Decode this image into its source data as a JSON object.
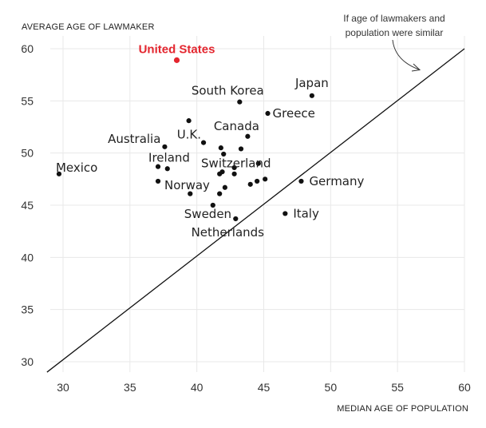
{
  "chart_data": {
    "type": "scatter",
    "title": "",
    "xlabel": "MEDIAN AGE OF POPULATION",
    "ylabel": "AVERAGE AGE OF LAWMAKER",
    "xlim": [
      28.5,
      60
    ],
    "ylim": [
      29,
      60.5
    ],
    "x_ticks": [
      30,
      35,
      40,
      45,
      50,
      55,
      60
    ],
    "y_ticks": [
      30,
      35,
      40,
      45,
      50,
      55,
      60
    ],
    "grid": true,
    "reference_line": {
      "points": [
        [
          28.8,
          29
        ],
        [
          60,
          60
        ]
      ],
      "annotation": "If age of lawmakers and population were similar",
      "annotation_lines": [
        "If age of lawmakers and",
        "population were similar"
      ]
    },
    "highlight_color": "#e4262f",
    "points": [
      {
        "x": 38.5,
        "y": 58.9,
        "label": "United States",
        "highlight": true
      },
      {
        "x": 48.6,
        "y": 55.5,
        "label": "Japan"
      },
      {
        "x": 43.2,
        "y": 54.9,
        "label": "South Korea"
      },
      {
        "x": 45.3,
        "y": 53.8,
        "label": "Greece"
      },
      {
        "x": 39.4,
        "y": 53.1,
        "label": ""
      },
      {
        "x": 43.8,
        "y": 51.6,
        "label": "Canada"
      },
      {
        "x": 40.5,
        "y": 51.0,
        "label": "U.K."
      },
      {
        "x": 37.6,
        "y": 50.6,
        "label": "Australia"
      },
      {
        "x": 41.8,
        "y": 50.5,
        "label": ""
      },
      {
        "x": 43.3,
        "y": 50.4,
        "label": ""
      },
      {
        "x": 42.0,
        "y": 49.9,
        "label": ""
      },
      {
        "x": 44.6,
        "y": 49.0,
        "label": "Switzerland"
      },
      {
        "x": 37.1,
        "y": 48.7,
        "label": "Ireland"
      },
      {
        "x": 37.8,
        "y": 48.5,
        "label": ""
      },
      {
        "x": 42.8,
        "y": 48.6,
        "label": ""
      },
      {
        "x": 41.9,
        "y": 48.2,
        "label": ""
      },
      {
        "x": 41.7,
        "y": 48.0,
        "label": ""
      },
      {
        "x": 42.8,
        "y": 48.0,
        "label": ""
      },
      {
        "x": 29.7,
        "y": 48.0,
        "label": "Mexico"
      },
      {
        "x": 45.1,
        "y": 47.5,
        "label": ""
      },
      {
        "x": 44.5,
        "y": 47.3,
        "label": ""
      },
      {
        "x": 37.1,
        "y": 47.3,
        "label": "Norway"
      },
      {
        "x": 47.8,
        "y": 47.3,
        "label": "Germany"
      },
      {
        "x": 44.0,
        "y": 47.0,
        "label": ""
      },
      {
        "x": 42.1,
        "y": 46.7,
        "label": ""
      },
      {
        "x": 39.5,
        "y": 46.1,
        "label": ""
      },
      {
        "x": 41.7,
        "y": 46.1,
        "label": ""
      },
      {
        "x": 41.2,
        "y": 45.0,
        "label": "Sweden"
      },
      {
        "x": 46.6,
        "y": 44.2,
        "label": "Italy"
      },
      {
        "x": 42.9,
        "y": 43.7,
        "label": "Netherlands"
      }
    ]
  }
}
